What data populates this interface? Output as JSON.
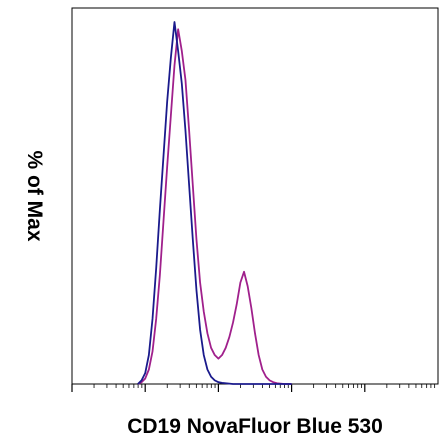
{
  "chart_data": {
    "type": "line",
    "title": "",
    "xlabel": "CD19 NovaFluor Blue 530",
    "ylabel": "% of Max",
    "xlim": [
      0,
      100
    ],
    "ylim": [
      0,
      100
    ],
    "grid": false,
    "legend": "none",
    "x_tick_labels": false,
    "y_tick_labels": false,
    "series": [
      {
        "color": "#1a1a8c",
        "x": [
          18,
          19,
          20,
          21,
          22,
          23,
          24,
          25,
          26,
          27,
          28,
          29,
          30,
          31,
          32,
          33,
          34,
          35,
          36,
          37,
          38,
          39,
          40,
          41,
          42,
          43,
          44,
          45,
          46,
          47,
          48,
          49,
          50,
          52,
          54,
          56,
          58,
          60
        ],
        "y": [
          0,
          1,
          3,
          8,
          18,
          32,
          48,
          63,
          78,
          90,
          100,
          92,
          83,
          70,
          55,
          40,
          26,
          15,
          8,
          4,
          2,
          1,
          0.5,
          0.3,
          0.2,
          0.1,
          0,
          0,
          0,
          0,
          0,
          0,
          0,
          0,
          0,
          0,
          0,
          0
        ]
      },
      {
        "color": "#a0208c",
        "x": [
          18,
          19,
          20,
          21,
          22,
          23,
          24,
          25,
          26,
          27,
          28,
          29,
          30,
          31,
          32,
          33,
          34,
          35,
          36,
          37,
          38,
          39,
          40,
          41,
          42,
          43,
          44,
          45,
          46,
          47,
          48,
          49,
          50,
          51,
          52,
          53,
          54,
          55,
          56,
          57,
          58,
          59,
          60
        ],
        "y": [
          0,
          0.5,
          1.5,
          4,
          9,
          18,
          30,
          45,
          60,
          74,
          88,
          98,
          92,
          84,
          70,
          55,
          40,
          28,
          20,
          14,
          10,
          8,
          7,
          8,
          10,
          13,
          17,
          22,
          28,
          31,
          27,
          21,
          14,
          8,
          4,
          2,
          1,
          0.5,
          0.2,
          0.1,
          0,
          0,
          0
        ]
      }
    ]
  }
}
